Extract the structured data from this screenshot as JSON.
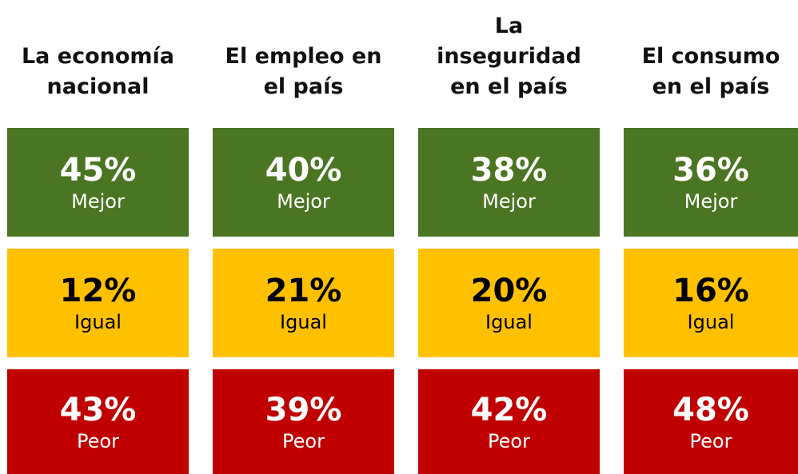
{
  "columns": [
    {
      "title_lines": [
        "La economía",
        "nacional"
      ],
      "cells": [
        {
          "value": "45%",
          "label": "Mejor"
        },
        {
          "value": "12%",
          "label": "Igual"
        },
        {
          "value": "43%",
          "label": "Peor"
        }
      ]
    },
    {
      "title_lines": [
        "El empleo en",
        "el país"
      ],
      "cells": [
        {
          "value": "40%",
          "label": "Mejor"
        },
        {
          "value": "21%",
          "label": "Igual"
        },
        {
          "value": "39%",
          "label": "Peor"
        }
      ]
    },
    {
      "title_lines": [
        "La",
        "inseguridad",
        "en el país"
      ],
      "cells": [
        {
          "value": "38%",
          "label": "Mejor"
        },
        {
          "value": "20%",
          "label": "Igual"
        },
        {
          "value": "42%",
          "label": "Peor"
        }
      ]
    },
    {
      "title_lines": [
        "El consumo",
        "en el país"
      ],
      "cells": [
        {
          "value": "36%",
          "label": "Mejor"
        },
        {
          "value": "16%",
          "label": "Igual"
        },
        {
          "value": "48%",
          "label": "Peor"
        }
      ]
    }
  ]
}
